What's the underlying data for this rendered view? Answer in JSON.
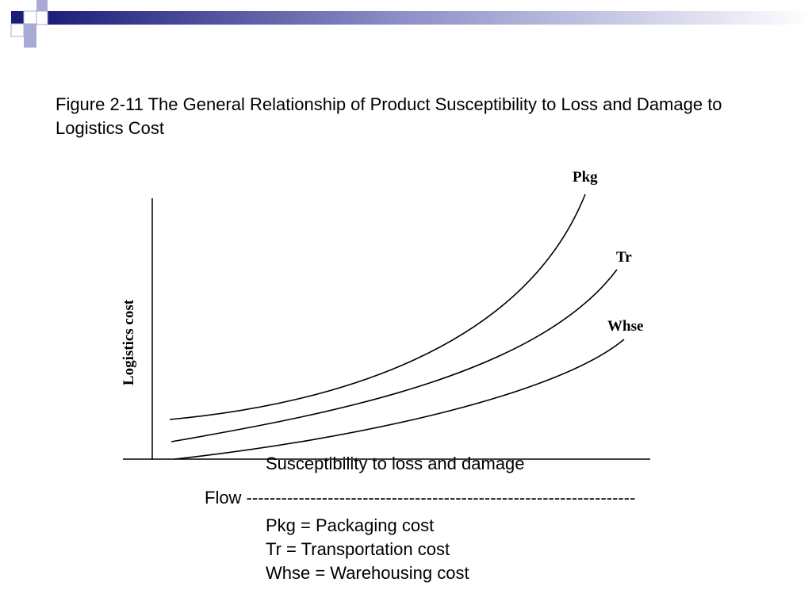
{
  "slide": {
    "title": "Figure 2-11 The General Relationship of Product Susceptibility to Loss and Damage to Logistics Cost",
    "flow_text": "Flow -------------------------------------------------------------------",
    "legend": [
      "Pkg = Packaging cost",
      "Tr = Transportation cost",
      "Whse = Warehousing cost"
    ],
    "colors": {
      "deco_dark": "#1c1e7a",
      "deco_light": "#a8aad4",
      "axis": "#000000",
      "curve": "#000000"
    }
  },
  "chart_data": {
    "type": "line",
    "title": "Figure 2-11 The General Relationship of Product Susceptibility to Loss and Damage to Logistics Cost",
    "xlabel": "Susceptibility to loss and damage",
    "ylabel": "Logistics cost",
    "grid": false,
    "axis_ticks": false,
    "series": [
      {
        "name": "Pkg",
        "description": "Packaging cost, highest and steepest curve"
      },
      {
        "name": "Tr",
        "description": "Transportation cost, middle curve"
      },
      {
        "name": "Whse",
        "description": "Warehousing cost, lowest curve"
      }
    ]
  }
}
